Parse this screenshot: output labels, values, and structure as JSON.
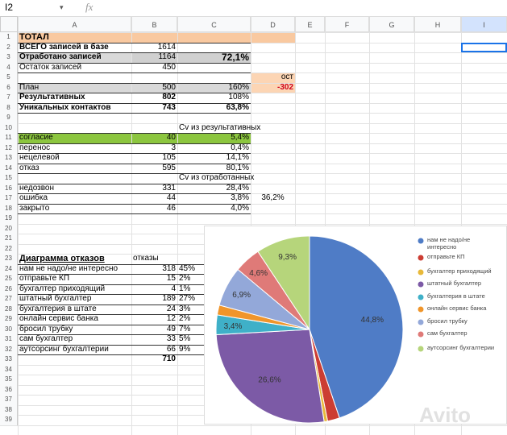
{
  "toolbar": {
    "cell_ref": "I2",
    "formula_icon": "fx"
  },
  "column_headers": [
    "A",
    "B",
    "C",
    "D",
    "E",
    "F",
    "G",
    "H",
    "I"
  ],
  "row_numbers": [
    1,
    2,
    3,
    4,
    5,
    6,
    7,
    8,
    9,
    10,
    11,
    12,
    13,
    14,
    15,
    16,
    17,
    18,
    19,
    20,
    21,
    22,
    23,
    24,
    25,
    26,
    27,
    28,
    29,
    30,
    31,
    32,
    33,
    34,
    35,
    36,
    37,
    38,
    39
  ],
  "rows": {
    "1": {
      "A": "ТОТАЛ"
    },
    "2": {
      "A": "ВСЕГО записей в базе",
      "B": "1614"
    },
    "3": {
      "A": "Отработано записей",
      "B": "1164",
      "C": "72,1%"
    },
    "4": {
      "A": "Остаток записей",
      "B": "450"
    },
    "5": {
      "D": "ост"
    },
    "6": {
      "A": "План",
      "B": "500",
      "C": "160%",
      "D": "-302"
    },
    "7": {
      "A": "Результативных",
      "B": "802",
      "C": "108%"
    },
    "8": {
      "A": "Уникальных контактов",
      "B": "743",
      "C": "63,8%"
    },
    "10": {
      "C": "Cv из результативных"
    },
    "11": {
      "A": "согласие",
      "B": "40",
      "C": "5,4%"
    },
    "12": {
      "A": "перенос",
      "B": "3",
      "C": "0,4%"
    },
    "13": {
      "A": "нецелевой",
      "B": "105",
      "C": "14,1%"
    },
    "14": {
      "A": "отказ",
      "B": "595",
      "C": "80,1%"
    },
    "15": {
      "C": "Cv из отработанных"
    },
    "16": {
      "A": "недозвон",
      "B": "331",
      "C": "28,4%"
    },
    "17": {
      "A": "ошибка",
      "B": "44",
      "C": "3,8%",
      "D": "36,2%"
    },
    "18": {
      "A": "закрыто",
      "B": "46",
      "C": "4,0%"
    },
    "23": {
      "A": "Диаграмма отказов",
      "B": "отказы"
    },
    "24": {
      "A": "нам не надо/не интересно",
      "B": "318",
      "C": "45%"
    },
    "25": {
      "A": "отправьте КП",
      "B": "15",
      "C": "2%"
    },
    "26": {
      "A": "бухгалтер приходящий",
      "B": "4",
      "C": "1%"
    },
    "27": {
      "A": "штатный бухгалтер",
      "B": "189",
      "C": "27%"
    },
    "28": {
      "A": "бухгалтерия в штате",
      "B": "24",
      "C": "3%"
    },
    "29": {
      "A": "онлайн сервис банка",
      "B": "12",
      "C": "2%"
    },
    "30": {
      "A": "бросил трубку",
      "B": "49",
      "C": "7%"
    },
    "31": {
      "A": "сам бухгалтер",
      "B": "33",
      "C": "5%"
    },
    "32": {
      "A": "аутсорсинг бухгалтерии",
      "B": "66",
      "C": "9%"
    },
    "33": {
      "B": "710"
    }
  },
  "chart_data": {
    "type": "pie",
    "categories": [
      "нам не надо/не интересно",
      "отправьте КП",
      "бухгалтер приходящий",
      "штатный бухгалтер",
      "бухгалтерия в штате",
      "онлайн сервис банка",
      "бросил трубку",
      "сам бухгалтер",
      "аутсорсинг бухгалтерии"
    ],
    "values": [
      44.8,
      2.1,
      0.6,
      26.6,
      3.4,
      1.7,
      6.9,
      4.6,
      9.3
    ],
    "value_labels": [
      "44,8%",
      null,
      null,
      "26,6%",
      "3,4%",
      null,
      "6,9%",
      "4,6%",
      "9,3%"
    ],
    "colors": [
      "#4f7cc6",
      "#cc3d33",
      "#e8b93a",
      "#7c5aa6",
      "#3fb0c8",
      "#f0952a",
      "#93a8d9",
      "#df7a78",
      "#b6d57b"
    ],
    "legend": "right"
  },
  "watermark": "Avito"
}
